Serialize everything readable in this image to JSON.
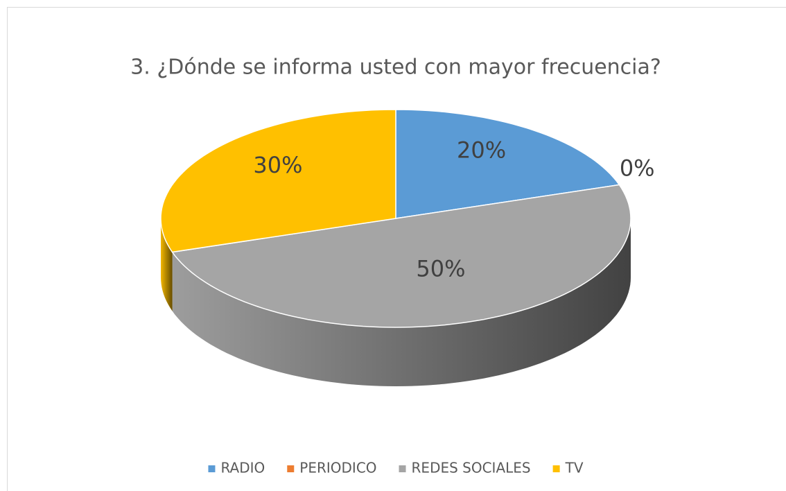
{
  "chart_data": {
    "type": "pie",
    "title": "3. ¿Dónde se informa usted con mayor frecuencia?",
    "categories": [
      "RADIO",
      "PERIODICO",
      "REDES SOCIALES",
      "TV"
    ],
    "values": [
      20,
      0,
      50,
      30
    ],
    "value_labels": [
      "20%",
      "0%",
      "50%",
      "30%"
    ],
    "colors": [
      "#5b9bd5",
      "#ed7d31",
      "#a5a5a5",
      "#ffc000"
    ],
    "legend": "bottom"
  }
}
